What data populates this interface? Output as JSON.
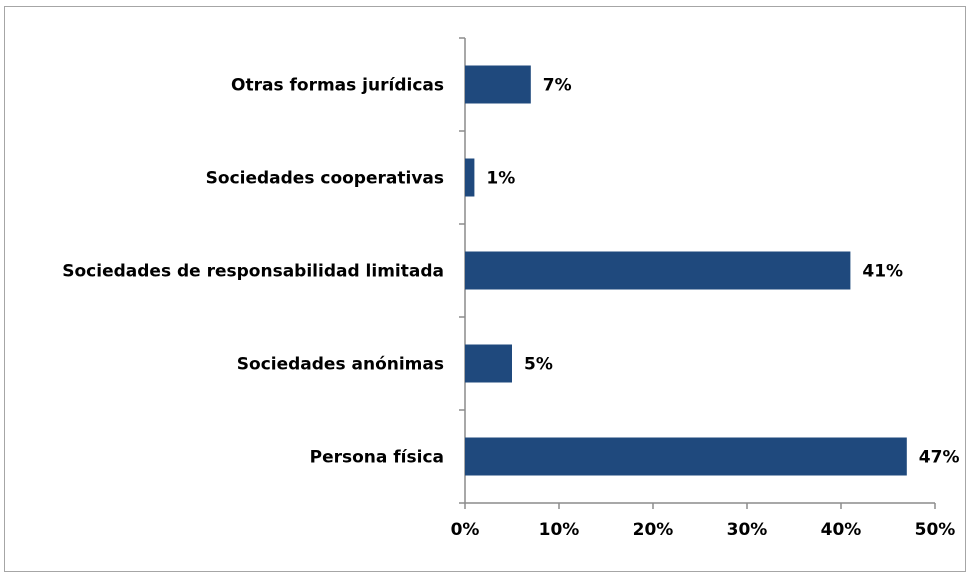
{
  "colors": {
    "bar": "#1f497d",
    "axis": "#8c8c8c",
    "frame": "#a6a6a6"
  },
  "chart_data": {
    "type": "bar",
    "orientation": "horizontal",
    "categories": [
      "Otras formas jurídicas",
      "Sociedades cooperativas",
      "Sociedades de responsabilidad limitada",
      "Sociedades anónimas",
      "Persona física"
    ],
    "values": [
      7,
      1,
      41,
      5,
      47
    ],
    "value_labels": [
      "7%",
      "1%",
      "41%",
      "5%",
      "47%"
    ],
    "xlim": [
      0,
      50
    ],
    "xticks": [
      0,
      10,
      20,
      30,
      40,
      50
    ],
    "xtick_labels": [
      "0%",
      "10%",
      "20%",
      "30%",
      "40%",
      "50%"
    ],
    "grid": false,
    "legend": "none"
  }
}
